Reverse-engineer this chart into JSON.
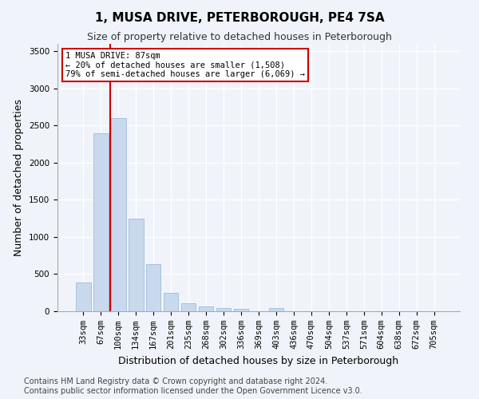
{
  "title": "1, MUSA DRIVE, PETERBOROUGH, PE4 7SA",
  "subtitle": "Size of property relative to detached houses in Peterborough",
  "xlabel": "Distribution of detached houses by size in Peterborough",
  "ylabel": "Number of detached properties",
  "categories": [
    "33sqm",
    "67sqm",
    "100sqm",
    "134sqm",
    "167sqm",
    "201sqm",
    "235sqm",
    "268sqm",
    "302sqm",
    "336sqm",
    "369sqm",
    "403sqm",
    "436sqm",
    "470sqm",
    "504sqm",
    "537sqm",
    "571sqm",
    "604sqm",
    "638sqm",
    "672sqm",
    "705sqm"
  ],
  "values": [
    390,
    2400,
    2600,
    1250,
    630,
    250,
    105,
    60,
    45,
    30,
    0,
    40,
    0,
    0,
    0,
    0,
    0,
    0,
    0,
    0,
    0
  ],
  "bar_color": "#c8d9ee",
  "bar_edge_color": "#9dbbd8",
  "vline_x": 1.55,
  "vline_color": "#cc0000",
  "annotation_text": "1 MUSA DRIVE: 87sqm\n← 20% of detached houses are smaller (1,508)\n79% of semi-detached houses are larger (6,069) →",
  "annotation_box_color": "#ffffff",
  "annotation_box_edge": "#cc0000",
  "ylim": [
    0,
    3600
  ],
  "yticks": [
    0,
    500,
    1000,
    1500,
    2000,
    2500,
    3000,
    3500
  ],
  "bg_color": "#f0f4fa",
  "plot_bg_color": "#f0f4fa",
  "footer": "Contains HM Land Registry data © Crown copyright and database right 2024.\nContains public sector information licensed under the Open Government Licence v3.0.",
  "title_fontsize": 11,
  "subtitle_fontsize": 9,
  "xlabel_fontsize": 9,
  "ylabel_fontsize": 9,
  "footer_fontsize": 7,
  "tick_fontsize": 7.5
}
